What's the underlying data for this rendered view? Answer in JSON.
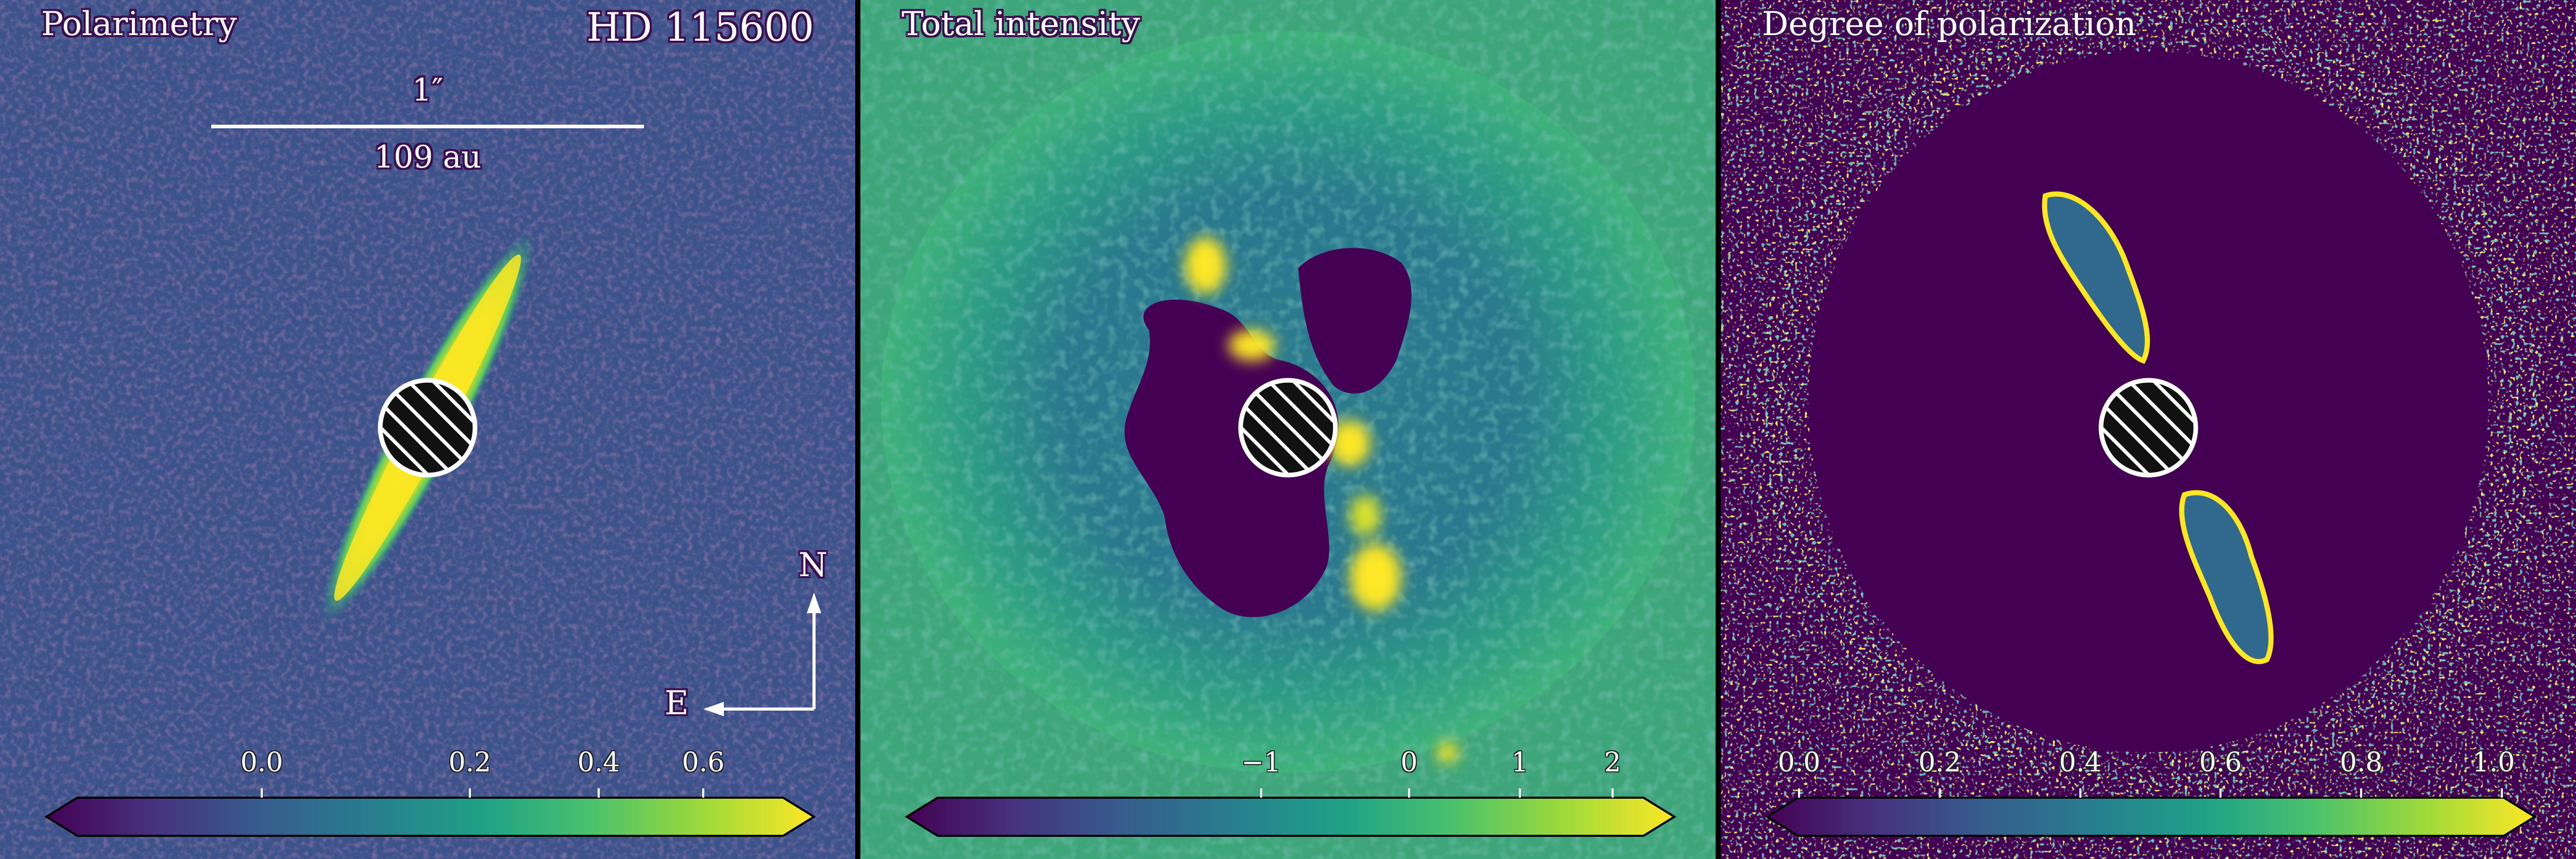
{
  "panels": [
    {
      "title": "Polarimetry",
      "target": "HD 115600",
      "scalebar": {
        "top": "1″",
        "bottom": "109 au"
      },
      "compass": {
        "north": "N",
        "east": "E"
      },
      "colorbar": {
        "colormap": "viridis",
        "ticks": [
          "0.0",
          "0.2",
          "0.4",
          "0.6"
        ],
        "extend": "both"
      }
    },
    {
      "title": "Total intensity",
      "colorbar": {
        "colormap": "viridis",
        "ticks": [
          "−1",
          "0",
          "1",
          "2"
        ],
        "extend": "both"
      }
    },
    {
      "title": "Degree of polarization",
      "colorbar": {
        "colormap": "viridis",
        "ticks": [
          "0.0",
          "0.2",
          "0.4",
          "0.6",
          "0.8",
          "1.0"
        ],
        "extend": "both"
      }
    }
  ],
  "colors": {
    "viridis_low": "#440154",
    "viridis_mid": "#21918c",
    "viridis_high": "#fde725",
    "background_p1": "#3b528b",
    "background_p2": "#3aa37a",
    "background_p3": "#440154"
  }
}
